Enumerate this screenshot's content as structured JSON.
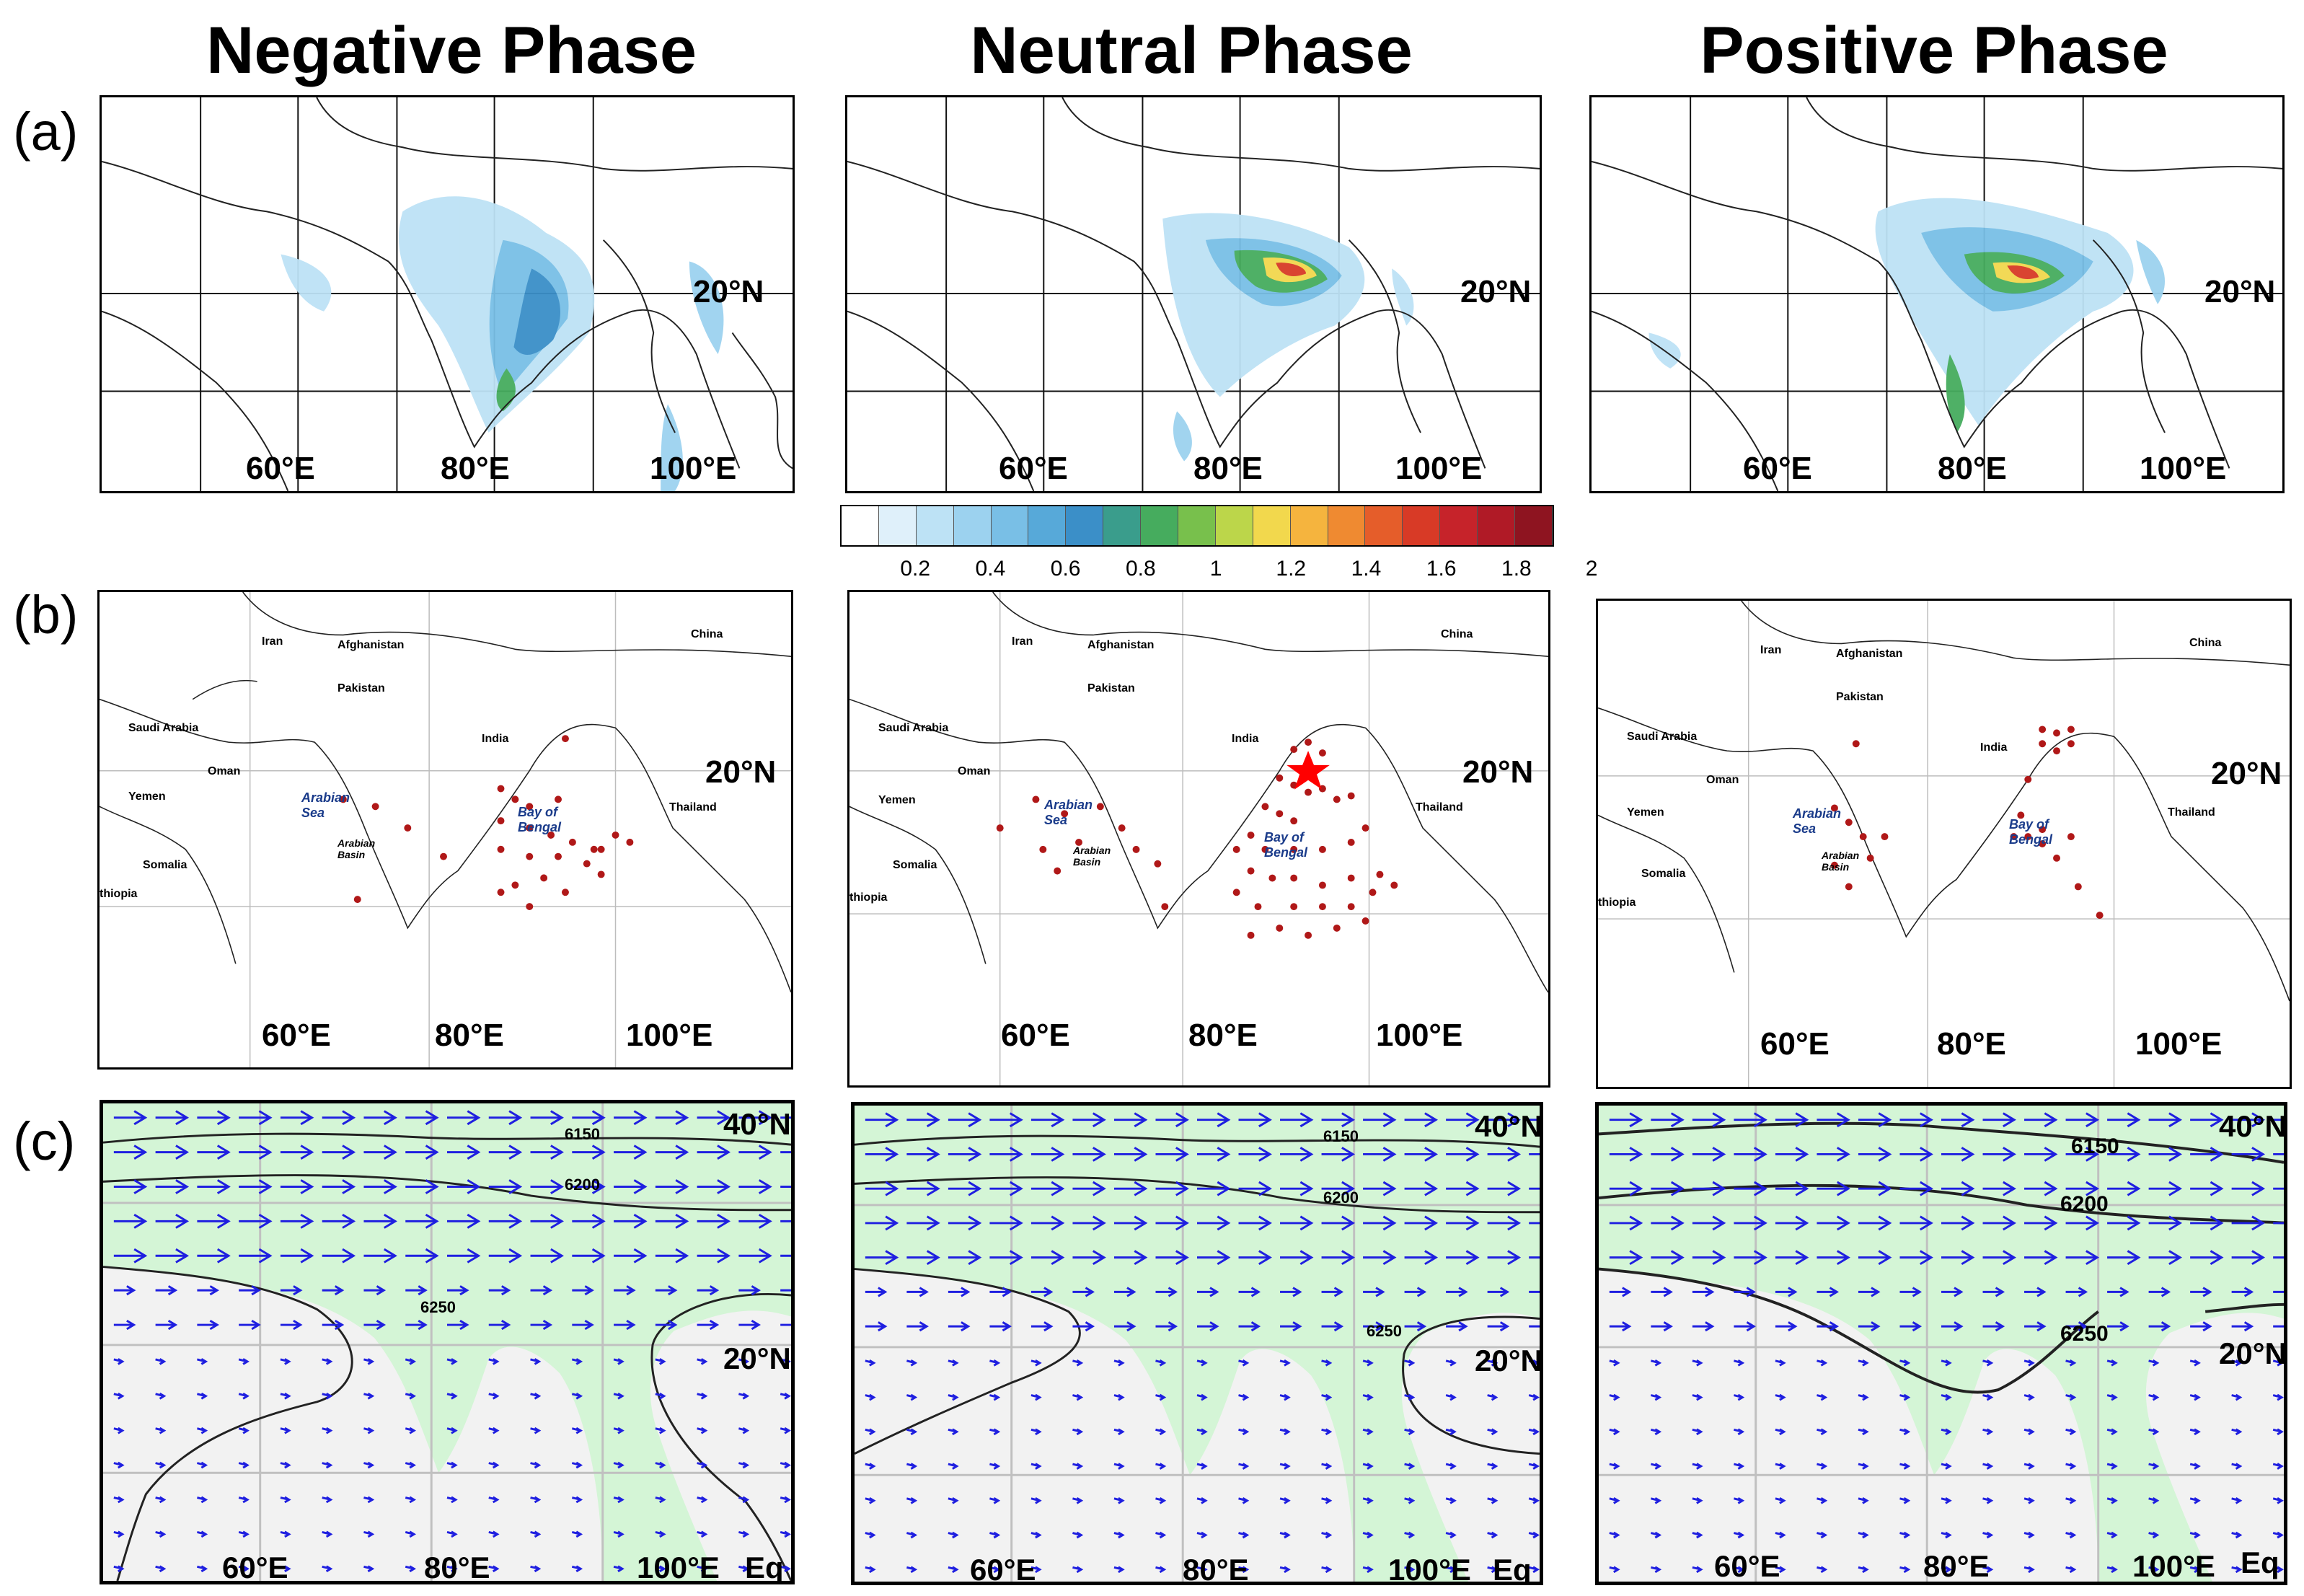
{
  "phases": {
    "negative": "Negative Phase",
    "neutral": "Neutral Phase",
    "positive": "Positive Phase"
  },
  "row_labels": {
    "a": "(a)",
    "b": "(b)",
    "c": "(c)"
  },
  "row_a": {
    "lat_label": "20°N",
    "lon_labels": [
      "60°E",
      "80°E",
      "100°E"
    ]
  },
  "row_b": {
    "lat_label": "20°N",
    "lon_labels": [
      "60°E",
      "80°E",
      "100°E"
    ],
    "place_names": {
      "bay_of_bengal": "Bay of Bengal",
      "arabian_sea": "Arabian Sea",
      "arabian_basin": "Arabian Basin",
      "saudi_arabia": "Saudi Arabia",
      "afghanistan": "Afghanistan",
      "pakistan": "Pakistan",
      "iran": "Iran",
      "india": "India",
      "china": "China",
      "yemen": "Yemen",
      "oman": "Oman",
      "somalia": "Somalia",
      "thailand": "Thailand",
      "ethiopia": "thiopia"
    }
  },
  "row_c": {
    "lat_labels": [
      "40°N",
      "20°N"
    ],
    "lon_labels": [
      "60°E",
      "80°E",
      "100°E"
    ],
    "eq_label": "Eq",
    "contours": [
      "6150",
      "6200",
      "6250"
    ]
  },
  "colorbar": {
    "colors": [
      "#ffffff",
      "#dff0fa",
      "#bde2f5",
      "#9cd2ef",
      "#79bfe6",
      "#57a9d9",
      "#3b8fc8",
      "#3a9d8c",
      "#46ac5e",
      "#78c04c",
      "#bcd64a",
      "#f2d84d",
      "#f5b43e",
      "#ef8a31",
      "#e55d2a",
      "#d83a26",
      "#c6232a",
      "#b01a26",
      "#8e1420"
    ],
    "labels": [
      "0.2",
      "0.4",
      "0.6",
      "0.8",
      "1",
      "1.2",
      "1.4",
      "1.6",
      "1.8",
      "2"
    ]
  },
  "colors": {
    "land": "#d4f5d6",
    "ocean": "#f2f2f2",
    "wind": "#1f1fe0",
    "dots": "#b01818",
    "star": "#ff0000"
  }
}
